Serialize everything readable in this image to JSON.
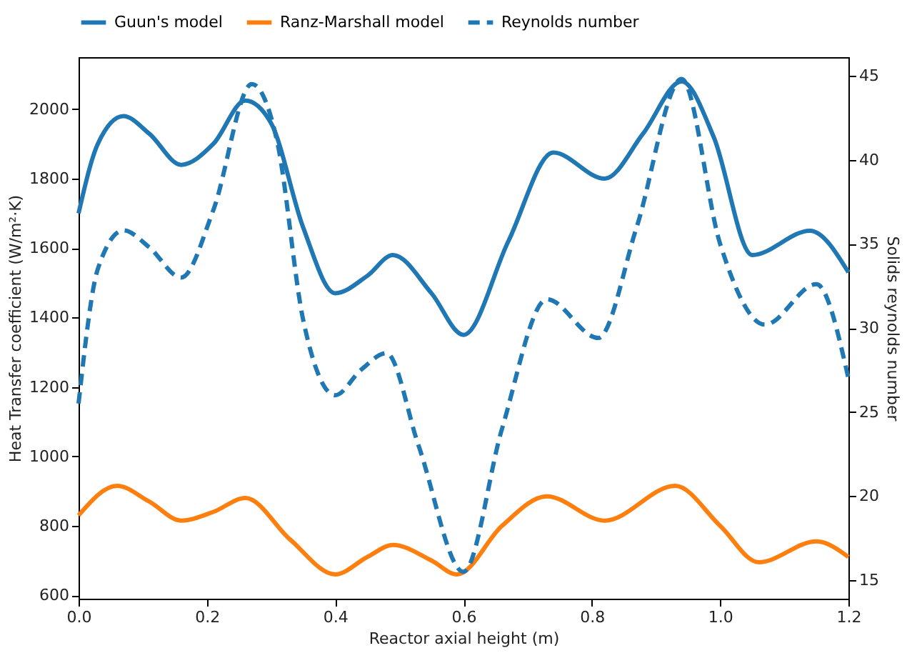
{
  "chart_data": {
    "type": "line",
    "xlabel": "Reactor axial height (m)",
    "ylabel": "Heat Transfer coefficient (W/m²·K)",
    "y2label": "Solids reynolds number",
    "xlim": [
      0,
      1.2
    ],
    "xticks": [
      {
        "value": 0,
        "label": "0.0"
      },
      0.2,
      0.4,
      0.6,
      0.8,
      {
        "value": 1,
        "label": "1.0"
      },
      1.2
    ],
    "ylim": [
      590,
      2150
    ],
    "yticks": [
      600,
      800,
      1000,
      1200,
      1400,
      1600,
      1800,
      2000
    ],
    "y2lim": [
      13.9,
      46.1
    ],
    "y2ticks": [
      15,
      20,
      25,
      30,
      35,
      40,
      45
    ],
    "grid": false,
    "legend": "top",
    "marker": "none",
    "series": [
      {
        "name": "Guun's model",
        "color": "#1f77b4",
        "line_style": "solid",
        "x": [
          0,
          0.03,
          0.07,
          0.11,
          0.16,
          0.21,
          0.26,
          0.3,
          0.35,
          0.4,
          0.45,
          0.49,
          0.55,
          0.6,
          0.67,
          0.74,
          0.82,
          0.88,
          0.94,
          0.99,
          1.05,
          1.14,
          1.2
        ],
        "values": [
          1700,
          1900,
          1980,
          1930,
          1840,
          1900,
          2025,
          1960,
          1660,
          1470,
          1520,
          1580,
          1470,
          1350,
          1620,
          1875,
          1800,
          1930,
          2080,
          1920,
          1580,
          1650,
          1530
        ]
      },
      {
        "name": "Ranz-Marshall model",
        "color": "#ff7f0e",
        "line_style": "solid",
        "x": [
          0,
          0.06,
          0.11,
          0.16,
          0.21,
          0.26,
          0.33,
          0.4,
          0.45,
          0.49,
          0.55,
          0.59,
          0.66,
          0.73,
          0.82,
          0.93,
          1.0,
          1.06,
          1.15,
          1.2
        ],
        "values": [
          830,
          915,
          870,
          815,
          840,
          880,
          760,
          660,
          710,
          745,
          700,
          660,
          800,
          885,
          815,
          915,
          800,
          695,
          755,
          710
        ]
      },
      {
        "name": "Reynolds number",
        "color": "#1f77b4",
        "line_style": "dashed",
        "axis": "y2",
        "x": [
          0,
          0.03,
          0.07,
          0.11,
          0.16,
          0.21,
          0.27,
          0.31,
          0.35,
          0.4,
          0.44,
          0.48,
          0.53,
          0.6,
          0.66,
          0.73,
          0.81,
          0.87,
          0.94,
          1.0,
          1.07,
          1.15,
          1.2
        ],
        "values": [
          25.5,
          33.5,
          35.8,
          34.8,
          33.0,
          37.0,
          44.5,
          41.0,
          30.5,
          26.0,
          27.5,
          28.5,
          23.0,
          15.5,
          24.0,
          31.7,
          29.4,
          36.0,
          44.8,
          35.0,
          30.2,
          32.6,
          27.0
        ]
      }
    ]
  }
}
